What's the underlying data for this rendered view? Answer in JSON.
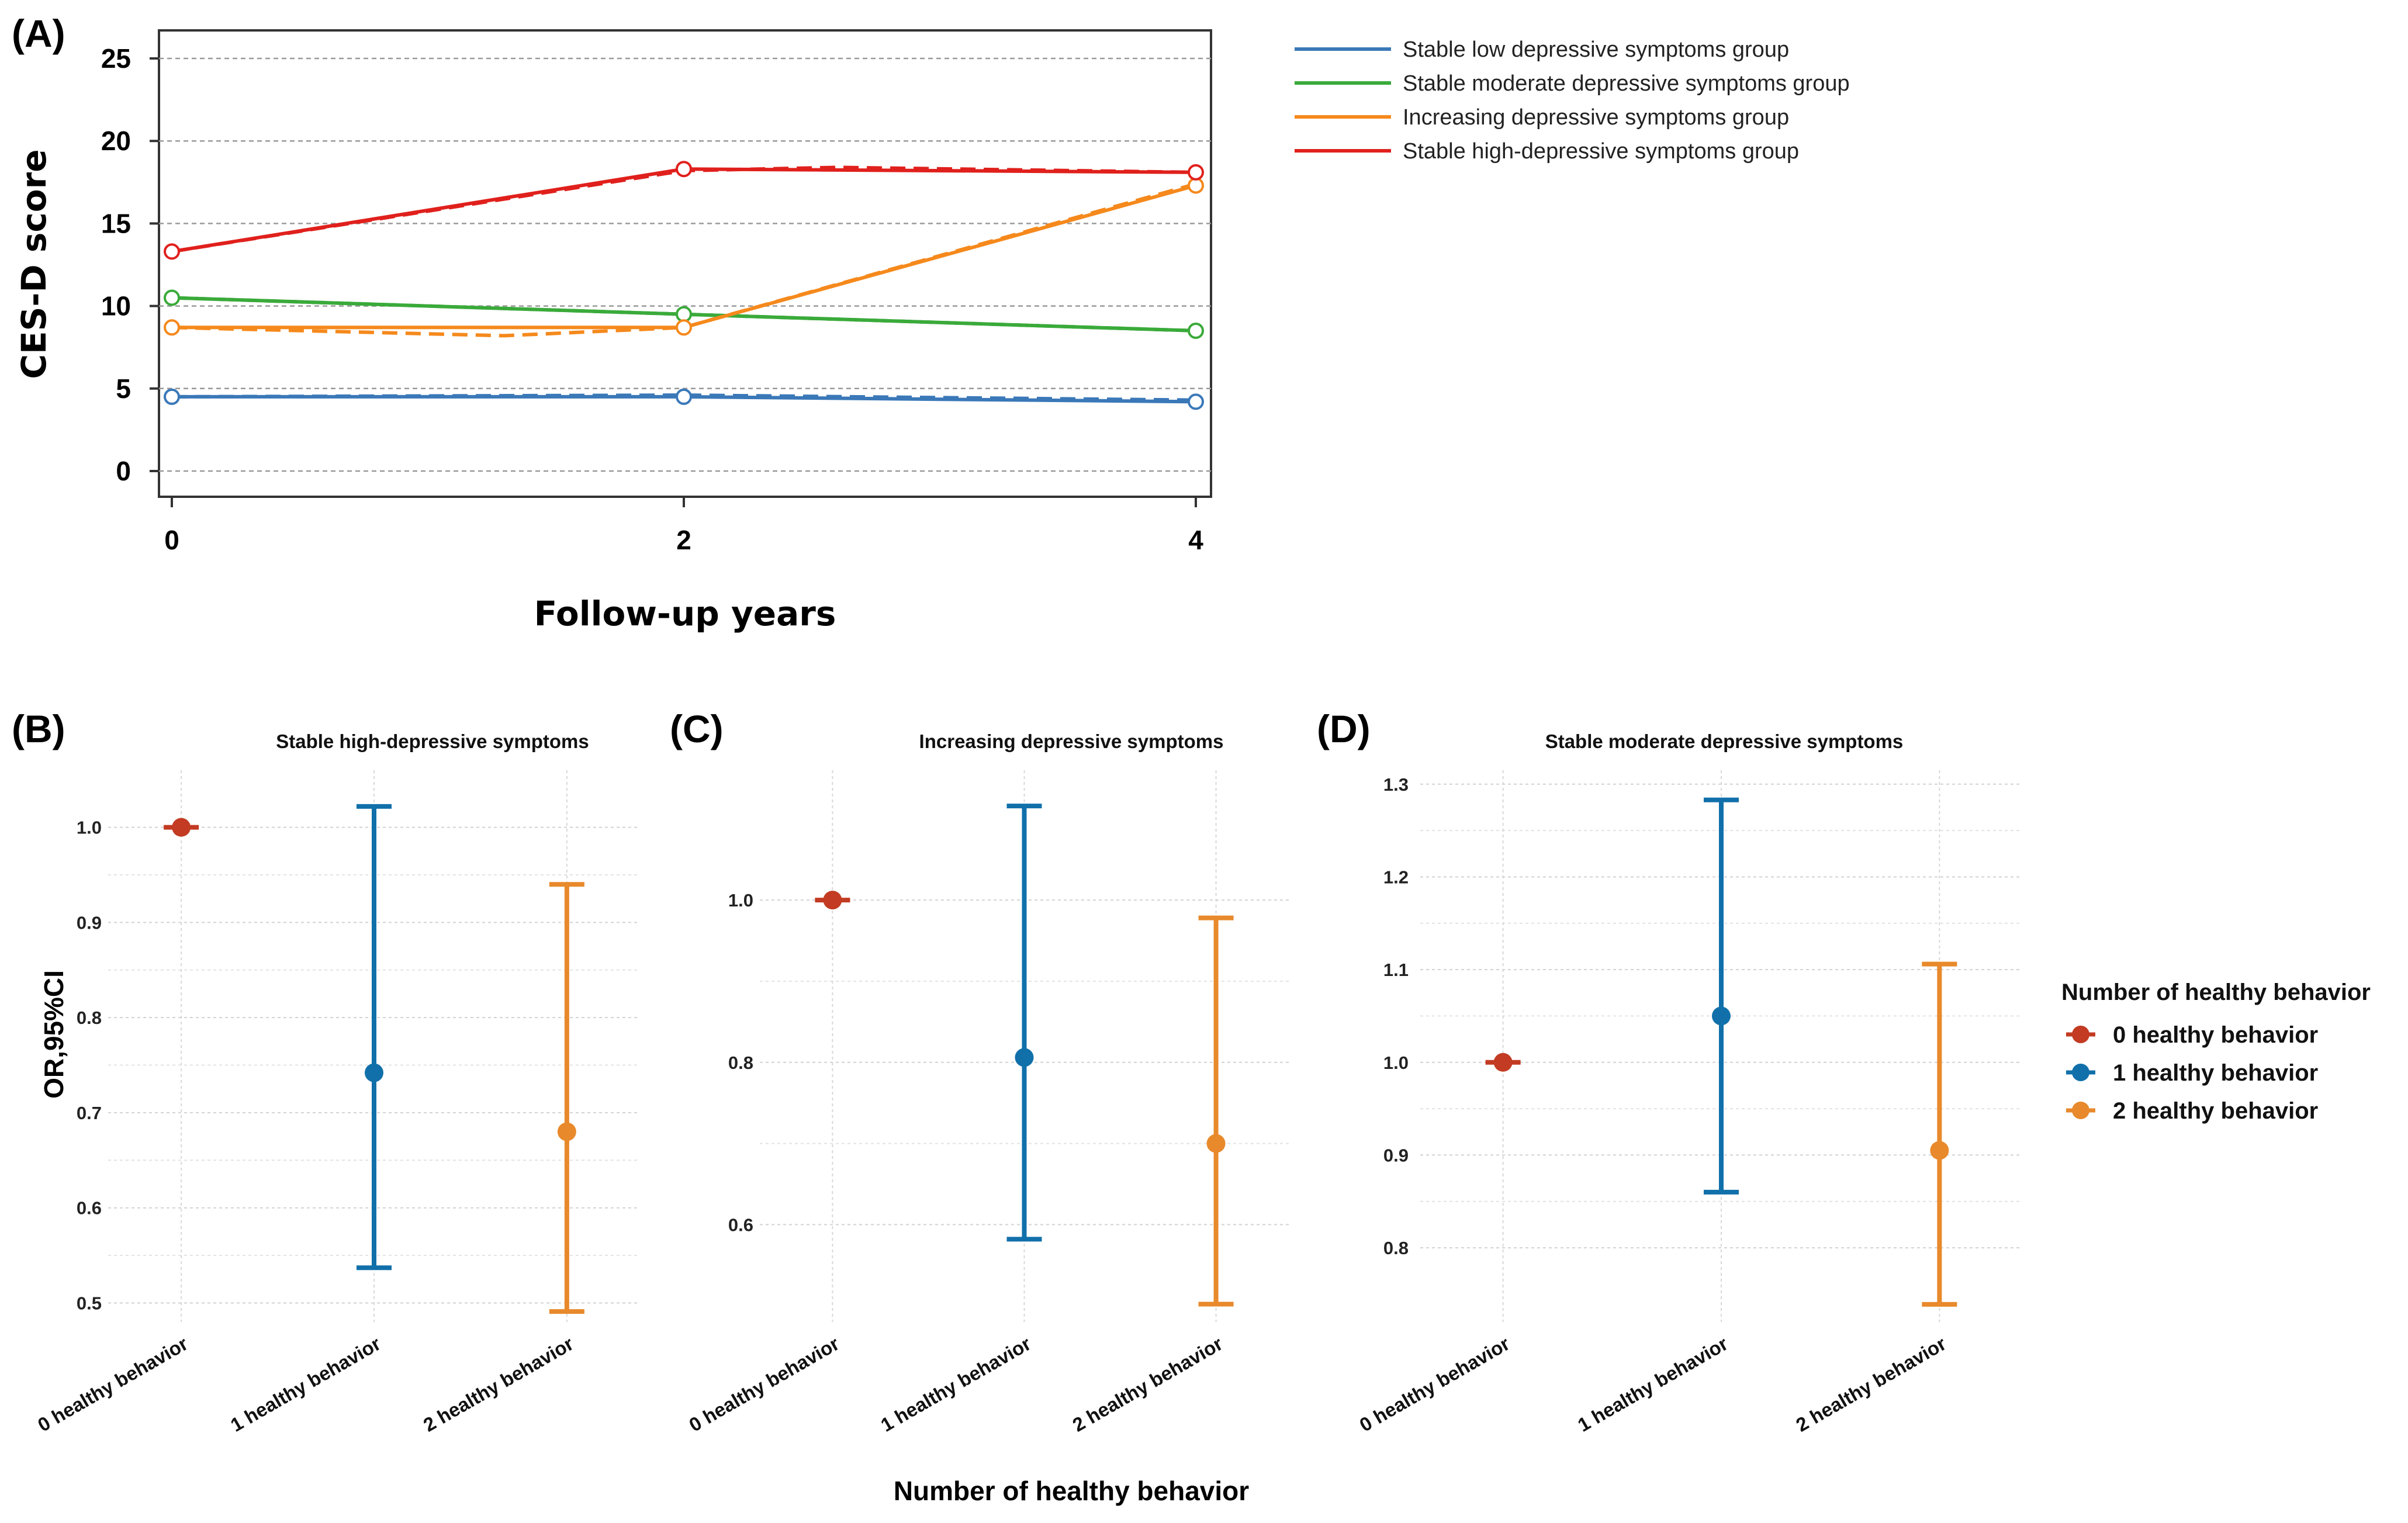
{
  "chart_data": [
    {
      "panel": "(A)",
      "type": "line",
      "title": "",
      "xlabel": "Follow-up years",
      "ylabel": "CES-D score",
      "x": [
        0,
        2,
        4
      ],
      "xticks": [
        "0",
        "2",
        "4"
      ],
      "yticks": [
        "0",
        "5",
        "10",
        "15",
        "20",
        "25"
      ],
      "xlim": [
        -0.05,
        4.05
      ],
      "ylim": [
        -1.5,
        26.5
      ],
      "grid": "horizontal dashed",
      "legend_position": "right",
      "series": [
        {
          "name": "Stable low depressive symptoms group",
          "color": "#3a78b8",
          "observed": [
            4.5,
            4.5,
            4.2
          ],
          "fitted": [
            4.5,
            4.6,
            4.3
          ],
          "fitted_x": [
            0,
            2,
            4
          ]
        },
        {
          "name": "Stable moderate depressive symptoms group",
          "color": "#3aaa3a",
          "observed": [
            10.5,
            9.5,
            8.5
          ],
          "fitted": [
            10.5,
            9.5,
            8.5
          ],
          "fitted_x": [
            0,
            2,
            4
          ]
        },
        {
          "name": "Increasing depressive symptoms group",
          "color": "#f5891c",
          "observed": [
            8.7,
            8.7,
            17.3
          ],
          "fitted": [
            8.7,
            8.2,
            8.7,
            17.4
          ],
          "fitted_x": [
            0,
            1.3,
            2,
            4
          ]
        },
        {
          "name": "Stable high-depressive symptoms group",
          "color": "#e0201c",
          "observed": [
            13.3,
            18.3,
            18.1
          ],
          "fitted": [
            13.3,
            18.2,
            18.4,
            18.1
          ],
          "fitted_x": [
            0,
            2,
            2.6,
            4
          ]
        }
      ]
    },
    {
      "panel": "(B)",
      "type": "scatter",
      "title": "Stable high-depressive symptoms",
      "xlabel": "",
      "ylabel": "OR,95%CI",
      "categories": [
        "0 healthy behavior",
        "1 healthy behavior",
        "2 healthy behavior"
      ],
      "yticks": [
        "0.5",
        "0.6",
        "0.7",
        "0.8",
        "0.9",
        "1.0"
      ],
      "ylim": [
        0.48,
        1.06
      ],
      "points": [
        {
          "category": "0 healthy behavior",
          "or": 1.0,
          "lower": 1.0,
          "upper": 1.0
        },
        {
          "category": "1 healthy behavior",
          "or": 0.742,
          "lower": 0.537,
          "upper": 1.022
        },
        {
          "category": "2 healthy behavior",
          "or": 0.68,
          "lower": 0.491,
          "upper": 0.94
        }
      ]
    },
    {
      "panel": "(C)",
      "type": "scatter",
      "title": "Increasing depressive symptoms",
      "xlabel": "Number of healthy behavior",
      "ylabel": "",
      "categories": [
        "0 healthy behavior",
        "1 healthy behavior",
        "2 healthy behavior"
      ],
      "yticks": [
        "0.6",
        "0.8",
        "1.0"
      ],
      "ylim": [
        0.48,
        1.16
      ],
      "points": [
        {
          "category": "0 healthy behavior",
          "or": 1.0,
          "lower": 1.0,
          "upper": 1.0
        },
        {
          "category": "1 healthy behavior",
          "or": 0.806,
          "lower": 0.582,
          "upper": 1.116
        },
        {
          "category": "2 healthy behavior",
          "or": 0.7,
          "lower": 0.502,
          "upper": 0.978
        }
      ]
    },
    {
      "panel": "(D)",
      "type": "scatter",
      "title": "Stable moderate depressive symptoms",
      "xlabel": "",
      "ylabel": "",
      "categories": [
        "0 healthy behavior",
        "1 healthy behavior",
        "2 healthy behavior"
      ],
      "yticks": [
        "0.8",
        "0.9",
        "1.0",
        "1.1",
        "1.2",
        "1.3"
      ],
      "ylim": [
        0.72,
        1.315
      ],
      "points": [
        {
          "category": "0 healthy behavior",
          "or": 1.0,
          "lower": 1.0,
          "upper": 1.0
        },
        {
          "category": "1 healthy behavior",
          "or": 1.05,
          "lower": 0.86,
          "upper": 1.283
        },
        {
          "category": "2 healthy behavior",
          "or": 0.905,
          "lower": 0.739,
          "upper": 1.106
        }
      ]
    }
  ],
  "or_legend": {
    "title": "Number of healthy behavior",
    "items": [
      {
        "label": "0 healthy behavior",
        "color": "#c23b22"
      },
      {
        "label": "1 healthy behavior",
        "color": "#1170aa"
      },
      {
        "label": "2 healthy behavior",
        "color": "#e8892b"
      }
    ]
  }
}
